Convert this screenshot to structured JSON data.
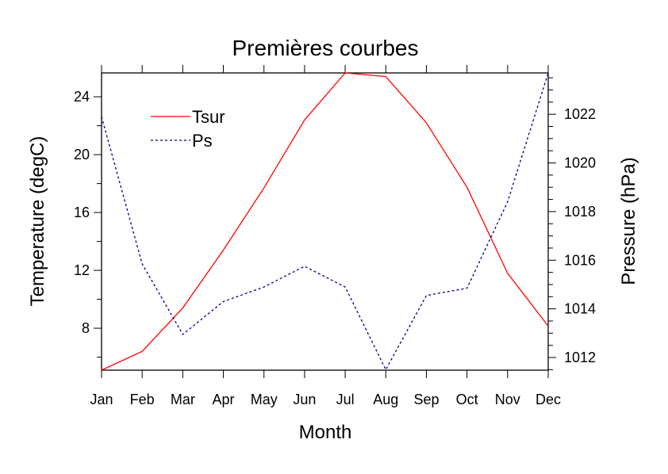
{
  "chart_data": {
    "type": "line",
    "title": "Premières courbes",
    "xlabel": "Month",
    "ylabel": "Temperature (degC)",
    "ylabel_right": "Pressure (hPa)",
    "categories": [
      "Jan",
      "Feb",
      "Mar",
      "Apr",
      "May",
      "Jun",
      "Jul",
      "Aug",
      "Sep",
      "Oct",
      "Nov",
      "Dec"
    ],
    "ylim": [
      5.1,
      25.65
    ],
    "ylim_right": [
      1011.48,
      1023.7
    ],
    "yticks": [
      8,
      12,
      16,
      20,
      24
    ],
    "yticks_right": [
      1012,
      1014,
      1016,
      1018,
      1020,
      1022
    ],
    "legend_position": "top-left",
    "grid": false,
    "series": [
      {
        "name": "Tsur",
        "axis": "left",
        "color": "#ff0000",
        "dash": "solid",
        "values": [
          5.1,
          6.4,
          9.4,
          13.4,
          17.7,
          22.4,
          25.65,
          25.4,
          22.2,
          17.75,
          11.8,
          8.15
        ]
      },
      {
        "name": "Ps",
        "axis": "right",
        "color": "#00008b",
        "dash": "dashed",
        "values": [
          1021.9,
          1015.85,
          1012.95,
          1014.3,
          1014.9,
          1015.75,
          1014.9,
          1011.5,
          1014.55,
          1014.85,
          1018.4,
          1023.7
        ]
      }
    ]
  }
}
